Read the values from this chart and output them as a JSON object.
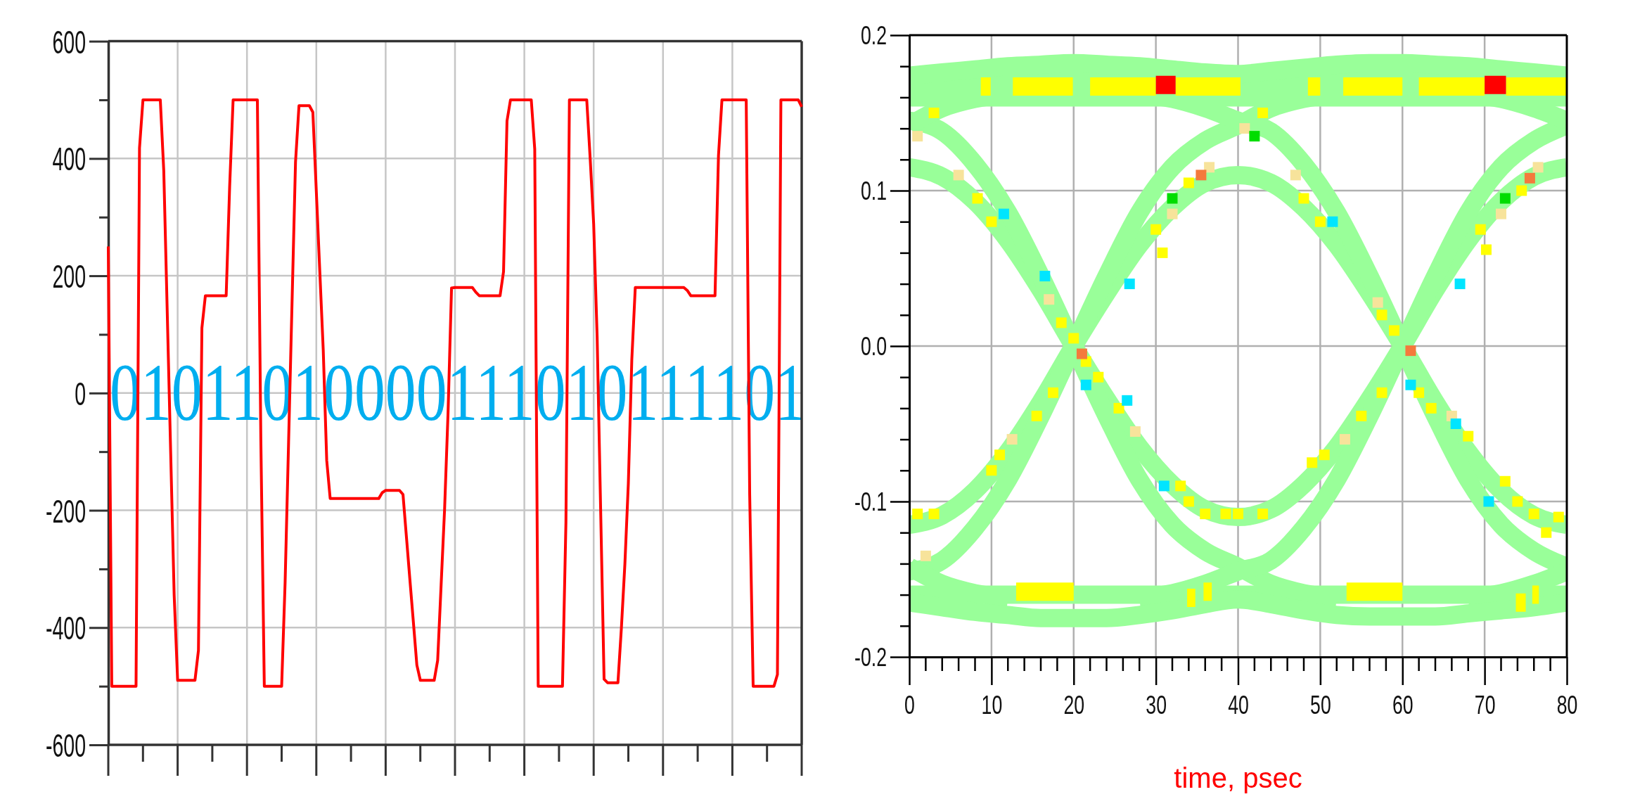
{
  "chart_data": [
    {
      "type": "line",
      "categories": [
        null,
        null,
        null,
        null,
        null,
        null,
        null,
        null,
        null,
        null,
        null,
        null,
        null,
        null,
        null,
        null,
        null,
        null,
        null,
        null,
        null,
        null,
        null,
        null,
        null,
        null,
        null,
        null,
        null,
        null,
        null,
        null,
        null,
        null,
        null,
        null,
        null,
        null,
        null,
        null,
        null,
        null,
        null,
        null,
        null,
        null,
        null,
        null,
        null,
        null,
        null,
        null,
        null,
        null,
        null,
        null,
        null,
        null,
        null,
        null,
        null,
        null,
        null,
        null,
        null,
        null,
        null,
        null,
        null,
        null,
        null,
        null,
        null,
        null,
        null,
        null,
        null,
        null,
        null,
        null,
        null,
        null,
        null,
        null,
        null,
        null,
        null,
        null,
        null,
        null,
        null,
        null,
        null,
        null,
        null,
        null,
        null,
        null,
        null,
        null,
        null,
        null,
        null,
        null,
        null,
        null,
        null,
        null,
        null,
        null,
        null,
        null,
        null,
        null,
        null,
        null,
        null,
        null,
        null,
        null,
        null,
        null,
        null,
        null,
        null,
        null,
        null,
        null,
        null,
        null,
        null,
        null,
        null,
        null,
        null,
        null,
        null,
        null,
        null,
        null,
        null,
        null,
        null,
        null,
        null,
        null,
        null,
        null,
        null,
        null,
        null,
        null,
        null,
        null,
        null,
        null,
        null,
        null,
        null,
        null,
        null,
        null,
        null,
        null,
        null,
        null,
        null,
        null,
        null,
        null,
        null,
        null,
        null,
        null,
        null,
        null,
        null,
        null,
        null,
        null,
        null,
        null,
        null,
        null,
        null,
        null,
        null,
        null,
        null,
        null,
        null,
        null,
        null,
        null,
        null,
        null,
        null,
        null,
        null,
        null,
        null
      ],
      "values": [
        250,
        -500,
        -500,
        -500,
        -500,
        -500,
        -500,
        -500,
        -500,
        418,
        500,
        500,
        500,
        500,
        500,
        500,
        379,
        138,
        -104,
        -345,
        -490,
        -490,
        -490,
        -490,
        -490,
        -490,
        -439,
        111,
        166,
        166,
        166,
        166,
        166,
        166,
        166,
        352,
        500,
        500,
        500,
        500,
        500,
        500,
        500,
        500,
        -80,
        -500,
        -500,
        -500,
        -500,
        -500,
        -500,
        -323,
        -84,
        155,
        394,
        490,
        490,
        490,
        490,
        479,
        344,
        208,
        73,
        -115,
        -180,
        -180,
        -180,
        -180,
        -180,
        -180,
        -180,
        -180,
        -180,
        -180,
        -180,
        -180,
        -180,
        -180,
        -180,
        -170,
        -166,
        -166,
        -166,
        -166,
        -166,
        -173,
        -246,
        -319,
        -391,
        -464,
        -490,
        -490,
        -490,
        -490,
        -490,
        -456,
        -327,
        -198,
        -33,
        179,
        180,
        180,
        180,
        180,
        180,
        180,
        172,
        166,
        166,
        166,
        166,
        166,
        166,
        166,
        207,
        464,
        500,
        500,
        500,
        500,
        500,
        500,
        500,
        416,
        -500,
        -500,
        -500,
        -500,
        -500,
        -500,
        -500,
        -500,
        -220,
        500,
        500,
        500,
        500,
        500,
        500,
        399,
        288,
        96,
        -196,
        -488,
        -494,
        -494,
        -494,
        -494,
        -400,
        -292,
        -154,
        57,
        180,
        180,
        180,
        180,
        180,
        180,
        180,
        180,
        180,
        180,
        180,
        180,
        180,
        180,
        180,
        175,
        166,
        166,
        166,
        166,
        166,
        166,
        166,
        166,
        405,
        500,
        500,
        500,
        500,
        500,
        500,
        500,
        500,
        -173,
        -500,
        -500,
        -500,
        -500,
        -500,
        -500,
        -500,
        -480,
        500,
        500,
        500,
        500,
        500,
        500,
        488
      ],
      "color": "#ff0000",
      "ylim": [
        -600,
        600
      ],
      "yticks": [
        600,
        {
          "value": 500,
          "label": null
        },
        400,
        {
          "value": 300,
          "label": null
        },
        200,
        {
          "value": 100,
          "label": null
        },
        0,
        {
          "value": -100,
          "label": null
        },
        -200,
        {
          "value": -300,
          "label": null
        },
        -400,
        {
          "value": -500,
          "label": null
        },
        -600
      ],
      "grid": true,
      "tick_labels": "y",
      "annotations": [
        "01011010000111010111101"
      ]
    },
    {
      "type": "line",
      "xlabel": "time, psec",
      "x": [
        0,
        4,
        8,
        12,
        16,
        20,
        24,
        28,
        32,
        36,
        40,
        44,
        48,
        52,
        56,
        60,
        64,
        68,
        72,
        76,
        80
      ],
      "xlim": [
        0,
        80
      ],
      "xticks": [
        0,
        10,
        20,
        30,
        40,
        50,
        60,
        70,
        80
      ],
      "ylim": [
        -0.2,
        0.2
      ],
      "yticks": [
        0.2,
        {
          "value": 0.18,
          "label": null
        },
        {
          "value": 0.16,
          "label": null
        },
        {
          "value": 0.14,
          "label": null
        },
        {
          "value": 0.12,
          "label": null
        },
        0.1,
        {
          "value": 0.08,
          "label": null
        },
        {
          "value": 0.06,
          "label": null
        },
        {
          "value": 0.04,
          "label": null
        },
        {
          "value": 0.02,
          "label": null
        },
        {
          "value": 0,
          "label": "0.0"
        },
        {
          "value": -0.02,
          "label": null
        },
        {
          "value": -0.04,
          "label": null
        },
        {
          "value": -0.06,
          "label": null
        },
        {
          "value": -0.08,
          "label": null
        },
        -0.1,
        {
          "value": -0.12,
          "label": null
        },
        {
          "value": -0.14,
          "label": null
        },
        {
          "value": -0.16,
          "label": null
        },
        {
          "value": -0.18,
          "label": null
        },
        -0.2
      ],
      "grid": true,
      "series": [
        {
          "color": "#99ff99",
          "values": [
            0.115,
            0.109,
            0.093,
            0.068,
            0.036,
            0,
            -0.034,
            -0.065,
            -0.089,
            -0.105,
            -0.11,
            -0.105,
            -0.089,
            -0.065,
            -0.034,
            0,
            0.036,
            0.068,
            0.093,
            0.109,
            0.115
          ]
        },
        {
          "color": "#99ff99",
          "values": [
            -0.115,
            -0.109,
            -0.093,
            -0.068,
            -0.036,
            0,
            0.034,
            0.065,
            0.089,
            0.105,
            0.11,
            0.105,
            0.089,
            0.065,
            0.034,
            0,
            -0.036,
            -0.068,
            -0.093,
            -0.109,
            -0.115
          ]
        },
        {
          "color": "#99ff99",
          "x": [
            0,
            4,
            8,
            12,
            16,
            20,
            24,
            28,
            32,
            36,
            40,
            44,
            48,
            52
          ],
          "values": [
            0.145,
            0.138,
            0.117,
            0.086,
            0.045,
            0,
            -0.045,
            -0.086,
            -0.115,
            -0.132,
            -0.142,
            -0.153,
            -0.159,
            -0.162
          ]
        },
        {
          "color": "#99ff99",
          "x": [
            0,
            4,
            8,
            12,
            16,
            20,
            24,
            28,
            32,
            36,
            40,
            44,
            48,
            52
          ],
          "values": [
            -0.145,
            -0.138,
            -0.117,
            -0.086,
            -0.045,
            0,
            0.045,
            0.086,
            0.115,
            0.132,
            0.142,
            0.153,
            0.159,
            0.162
          ]
        },
        {
          "color": "#99ff99",
          "x": [
            28,
            32,
            36,
            40,
            44,
            48,
            52,
            56,
            60,
            64,
            68,
            72,
            76,
            80
          ],
          "values": [
            0.162,
            0.159,
            0.153,
            0.145,
            0.138,
            0.117,
            0.086,
            0.045,
            0,
            -0.045,
            -0.086,
            -0.115,
            -0.132,
            -0.142
          ]
        },
        {
          "color": "#99ff99",
          "x": [
            28,
            32,
            36,
            40,
            44,
            48,
            52,
            56,
            60,
            64,
            68,
            72,
            76,
            80
          ],
          "values": [
            -0.162,
            -0.159,
            -0.153,
            -0.145,
            -0.138,
            -0.117,
            -0.086,
            -0.045,
            0,
            0.045,
            0.086,
            0.115,
            0.132,
            0.142
          ]
        },
        {
          "color": "#99ff99",
          "x": [
            0,
            4,
            8,
            12
          ],
          "values": [
            0.142,
            0.153,
            0.159,
            0.162
          ]
        },
        {
          "color": "#99ff99",
          "x": [
            68,
            72,
            76,
            80
          ],
          "values": [
            0.162,
            0.159,
            0.153,
            0.145
          ]
        },
        {
          "color": "#99ff99",
          "x": [
            0,
            4,
            8,
            12
          ],
          "values": [
            -0.142,
            -0.153,
            -0.159,
            -0.162
          ]
        },
        {
          "color": "#99ff99",
          "x": [
            68,
            72,
            76,
            80
          ],
          "values": [
            -0.162,
            -0.159,
            -0.153,
            -0.145
          ]
        },
        {
          "color": "#99ff99",
          "x": [
            0,
            80
          ],
          "values": [
            0.16,
            0.16
          ]
        },
        {
          "color": "#99ff99",
          "x": [
            0,
            80
          ],
          "values": [
            0.171,
            0.171
          ]
        },
        {
          "color": "#99ff99",
          "values": [
            0.174,
            0.176,
            0.178,
            0.18,
            0.181,
            0.182,
            0.181,
            0.18,
            0.178,
            0.176,
            0.175,
            0.177,
            0.179,
            0.181,
            0.182,
            0.182,
            0.181,
            0.18,
            0.178,
            0.176,
            0.174
          ]
        },
        {
          "color": "#99ff99",
          "x": [
            0,
            80
          ],
          "values": [
            -0.16,
            -0.16
          ]
        },
        {
          "color": "#99ff99",
          "values": [
            -0.165,
            -0.168,
            -0.171,
            -0.173,
            -0.175,
            -0.175,
            -0.175,
            -0.173,
            -0.17,
            -0.166,
            -0.163,
            -0.166,
            -0.17,
            -0.173,
            -0.174,
            -0.174,
            -0.174,
            -0.172,
            -0.17,
            -0.168,
            -0.165
          ]
        },
        {
          "color": "#ffff00",
          "x": [
            8.7,
            9.9,
            11,
            12.6,
            19.9,
            21,
            22,
            30,
            31,
            32.4,
            40.3,
            44,
            48.5,
            50,
            51,
            52.8,
            60,
            61,
            62,
            70,
            71,
            72.6,
            80
          ],
          "values": [
            0.167,
            0.167,
            null,
            0.167,
            0.167,
            null,
            0.167,
            0.167,
            null,
            0.167,
            0.167,
            null,
            0.167,
            0.167,
            null,
            0.167,
            0.167,
            null,
            0.167,
            0.167,
            null,
            0.167,
            0.167
          ]
        },
        {
          "color": "#ff0000",
          "x": [
            30,
            32.4,
            51,
            70,
            72.6
          ],
          "values": [
            0.168,
            0.168,
            null,
            0.168,
            0.168
          ]
        },
        {
          "color": "#ffff00",
          "x": [
            13,
            20,
            27,
            33.8,
            34.8,
            35.3,
            35.8,
            36.8,
            45,
            53.2,
            60,
            67,
            73.8,
            75,
            75.4,
            75.8,
            76.6
          ],
          "values": [
            -0.158,
            -0.158,
            null,
            -0.162,
            -0.162,
            null,
            -0.158,
            -0.158,
            null,
            -0.158,
            -0.158,
            null,
            -0.165,
            -0.165,
            null,
            -0.16,
            -0.16
          ]
        },
        {
          "type": "scatter",
          "marker": "square",
          "color": "#ffff00",
          "x": [
            3,
            8.3,
            10,
            18.5,
            20,
            21.5,
            23,
            25.5,
            33,
            34,
            36,
            38.5,
            10,
            11,
            15.5,
            17.5,
            1,
            3,
            30,
            30.8,
            34,
            43,
            48,
            50,
            57.5,
            59,
            62,
            63.5,
            68,
            72.5,
            74,
            76,
            79,
            77.5,
            49,
            50.5,
            55,
            57.5,
            40,
            43,
            69.5,
            70.2,
            74.5
          ],
          "values": [
            0.15,
            0.095,
            0.08,
            0.015,
            0.005,
            -0.01,
            -0.02,
            -0.04,
            -0.09,
            -0.1,
            -0.108,
            -0.108,
            -0.08,
            -0.07,
            -0.045,
            -0.03,
            -0.108,
            -0.108,
            0.075,
            0.06,
            0.105,
            0.15,
            0.095,
            0.08,
            0.02,
            0.01,
            -0.03,
            -0.04,
            -0.058,
            -0.087,
            -0.1,
            -0.108,
            -0.11,
            -0.12,
            -0.075,
            -0.07,
            -0.045,
            -0.03,
            -0.108,
            -0.108,
            0.075,
            0.062,
            0.1
          ]
        },
        {
          "type": "scatter",
          "marker": "square",
          "color": "#f7e39b",
          "x": [
            1,
            6,
            17,
            27.5,
            12.5,
            2,
            32,
            36.5,
            40.8,
            47,
            57,
            66,
            53,
            72,
            76.5
          ],
          "values": [
            0.135,
            0.11,
            0.03,
            -0.055,
            -0.06,
            -0.135,
            0.085,
            0.115,
            0.14,
            0.11,
            0.028,
            -0.045,
            -0.06,
            0.085,
            0.115
          ]
        },
        {
          "type": "scatter",
          "marker": "square",
          "color": "#f47a3c",
          "x": [
            21,
            61,
            35.5,
            75.5
          ],
          "values": [
            -0.005,
            -0.003,
            0.11,
            0.108
          ]
        },
        {
          "type": "scatter",
          "marker": "square",
          "color": "#00dd00",
          "x": [
            32,
            72.5,
            42
          ],
          "values": [
            0.095,
            0.095,
            0.135
          ]
        },
        {
          "type": "scatter",
          "marker": "square",
          "color": "#00e5ff",
          "x": [
            11.5,
            16.5,
            21.5,
            26.5,
            26.8,
            31,
            51.5,
            61,
            66.5,
            70.5,
            67
          ],
          "values": [
            0.085,
            0.045,
            -0.025,
            -0.035,
            0.04,
            -0.09,
            0.08,
            -0.025,
            -0.05,
            -0.1,
            0.04
          ]
        }
      ]
    }
  ]
}
